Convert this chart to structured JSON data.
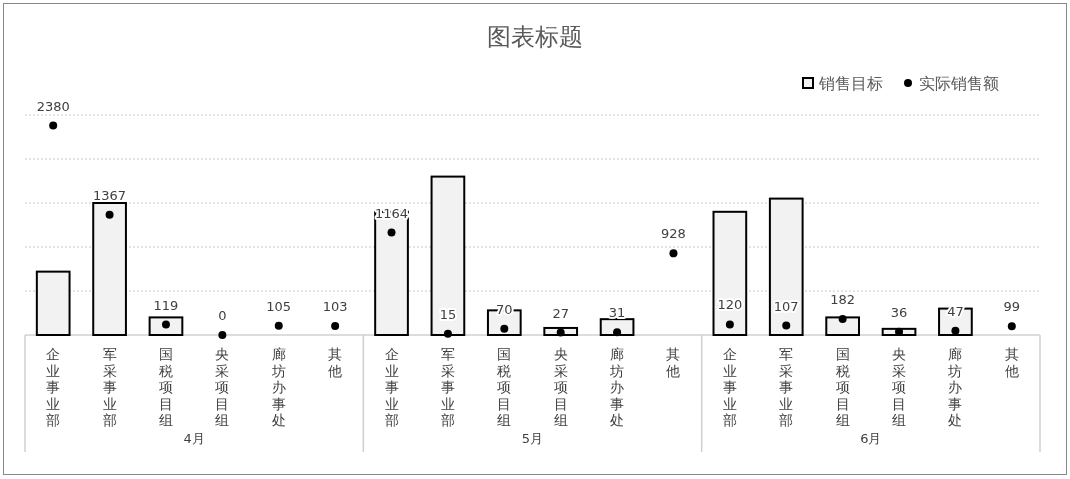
{
  "chart_data": {
    "type": "bar",
    "title": "图表标题",
    "categories": [
      "企业事业部",
      "军采事业部",
      "国税项目组",
      "央采项目组",
      "廊坊办事处",
      "其他",
      "企业事业部",
      "军采事业部",
      "国税项目组",
      "央采项目组",
      "廊坊办事处",
      "其他",
      "企业事业部",
      "军采事业部",
      "国税项目组",
      "央采项目组",
      "廊坊办事处",
      "其他"
    ],
    "series": [
      {
        "name": "销售目标",
        "type": "bar",
        "color": "#f2f2f2",
        "values": [
          720,
          1500,
          200,
          0,
          0,
          0,
          1400,
          1800,
          280,
          80,
          180,
          0,
          1400,
          1550,
          200,
          70,
          300,
          0
        ]
      },
      {
        "name": "实际销售额",
        "type": "scatter",
        "color": "#000000",
        "values": [
          2380,
          1367,
          119,
          0,
          105,
          103,
          1164,
          15,
          70,
          27,
          31,
          928,
          120,
          107,
          182,
          36,
          47,
          99
        ],
        "value_labels": [
          "2380",
          "1367",
          "119",
          "0",
          "105",
          "103",
          "1164",
          "15",
          "70",
          "27",
          "31",
          "928",
          "120",
          "107",
          "182",
          "36",
          "47",
          "99"
        ]
      }
    ],
    "annotations": [
      "4月",
      "5月",
      "6月"
    ],
    "ylim": [
      0,
      2500
    ],
    "yticks": [
      {
        "value": 0,
        "label": null
      },
      {
        "value": 500,
        "label": null
      },
      {
        "value": 1000,
        "label": null
      },
      {
        "value": 1500,
        "label": null
      },
      {
        "value": 2000,
        "label": null
      },
      {
        "value": 2500,
        "label": null
      }
    ],
    "tick_labels": "x",
    "grid": "y",
    "legend": "top right",
    "marker": "circle"
  }
}
